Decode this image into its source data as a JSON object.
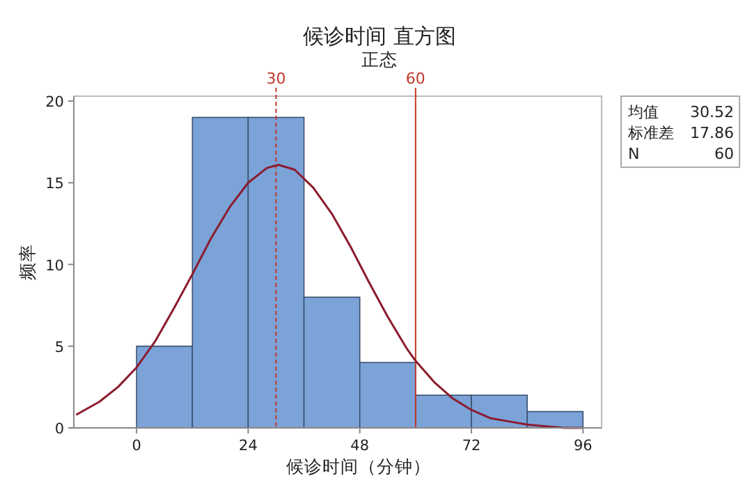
{
  "chart_data": {
    "type": "histogram",
    "title": "候诊时间 直方图",
    "subtitle": "正态",
    "xlabel": "候诊时间（分钟）",
    "ylabel": "频率",
    "bins": [
      0,
      12,
      24,
      36,
      48,
      60,
      72,
      84,
      96
    ],
    "values": [
      5,
      19,
      19,
      8,
      4,
      2,
      2,
      1
    ],
    "color": "#7ba3d8",
    "series": [
      {
        "type": "line",
        "color": "#8b1c2e",
        "x": [
          -13,
          -8,
          -4,
          0,
          4,
          8,
          12,
          16,
          20,
          24,
          28,
          30.5,
          34,
          38,
          42,
          46,
          50,
          54,
          58,
          60,
          64,
          68,
          72,
          76,
          80,
          84,
          88,
          92,
          96
        ],
        "values": [
          0.8,
          1.6,
          2.5,
          3.7,
          5.3,
          7.3,
          9.4,
          11.6,
          13.5,
          15.0,
          15.9,
          16.1,
          15.8,
          14.7,
          13.1,
          11.1,
          8.9,
          6.8,
          4.9,
          4.1,
          2.8,
          1.8,
          1.1,
          0.6,
          0.4,
          0.2,
          0.1,
          0.0,
          0.0
        ]
      }
    ],
    "xlim": [
      -13.5,
      100
    ],
    "ylim": [
      0,
      20.3
    ],
    "xticks": [
      0,
      24,
      48,
      72,
      96
    ],
    "yticks": [
      0,
      5,
      10,
      15,
      20
    ],
    "grid": false,
    "ref_lines": [
      {
        "axis": "x",
        "value": 30,
        "label": "30",
        "color": "#c0392b",
        "line_style": "dashed"
      },
      {
        "axis": "x",
        "value": 60,
        "label": "60",
        "color": "#c0392b",
        "line_style": "solid"
      }
    ],
    "annotations": [
      "均值",
      "30.52",
      "标准差",
      "17.86",
      "N",
      "60"
    ]
  }
}
